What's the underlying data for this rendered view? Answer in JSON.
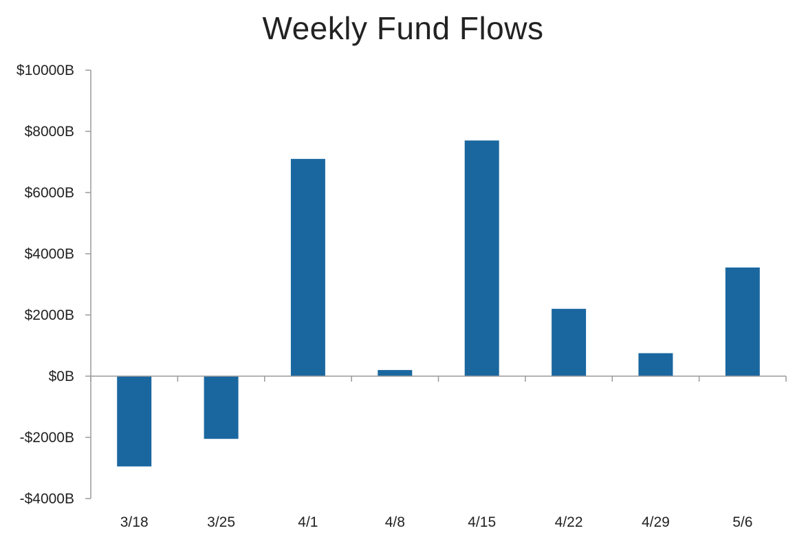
{
  "chart_data": {
    "type": "bar",
    "title": "Weekly Fund Flows",
    "xlabel": "",
    "ylabel": "",
    "categories": [
      "3/18",
      "3/25",
      "4/1",
      "4/8",
      "4/15",
      "4/22",
      "4/29",
      "5/6"
    ],
    "values": [
      -2950,
      -2050,
      7100,
      200,
      7700,
      2200,
      750,
      3550
    ],
    "ylim": [
      -4000,
      10000
    ],
    "yticks": [
      10000,
      8000,
      6000,
      4000,
      2000,
      0,
      -2000,
      -4000
    ],
    "ytick_labels": [
      "$10000B",
      "$8000B",
      "$6000B",
      "$4000B",
      "$2000B",
      "$0B",
      "-$2000B",
      "-$4000B"
    ],
    "bar_color": "#1a67a0",
    "axis_color": "#9a9a9a",
    "grid": false,
    "legend": "none"
  }
}
